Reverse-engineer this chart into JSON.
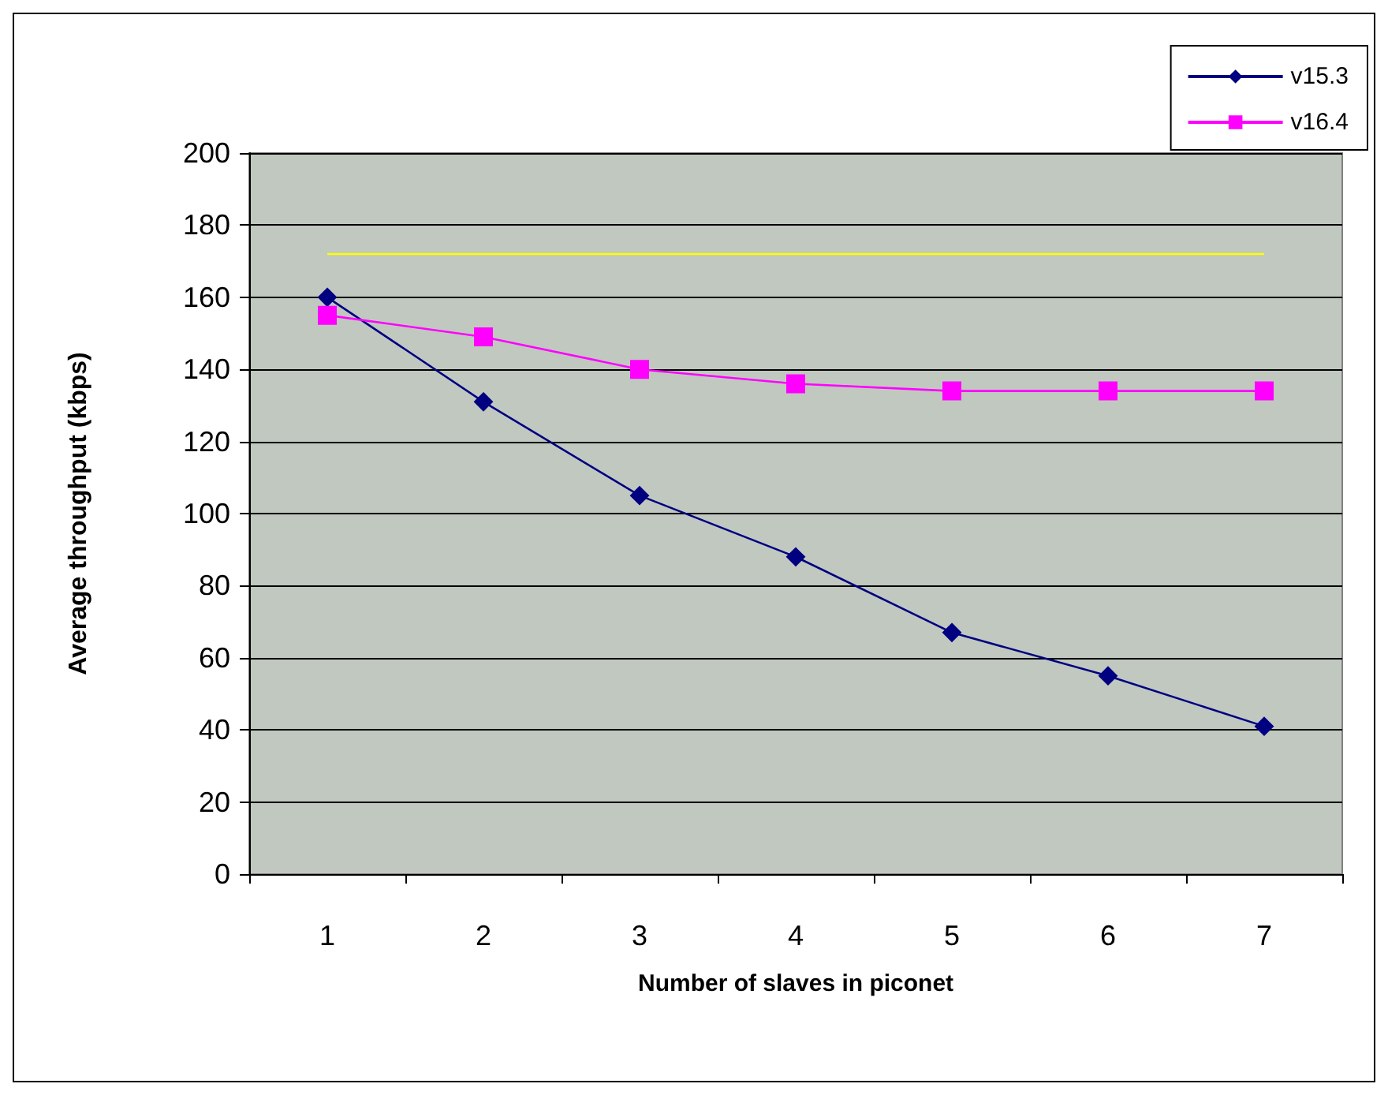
{
  "chart_data": {
    "type": "line",
    "xlabel": "Number of slaves in piconet",
    "ylabel": "Average throughput (kbps)",
    "categories": [
      "1",
      "2",
      "3",
      "4",
      "5",
      "6",
      "7"
    ],
    "series": [
      {
        "name": "v15.3",
        "color": "#000080",
        "marker": "diamond",
        "values": [
          160,
          131,
          105,
          88,
          67,
          55,
          41
        ]
      },
      {
        "name": "v16.4",
        "color": "#ff00ff",
        "marker": "square",
        "values": [
          155,
          149,
          140,
          136,
          134,
          134,
          134
        ]
      },
      {
        "color": "#ffff00",
        "marker": "none",
        "values": [
          172,
          172,
          172,
          172,
          172,
          172,
          172
        ]
      }
    ],
    "ylim": [
      0,
      200
    ],
    "yticks": [
      0,
      20,
      40,
      60,
      80,
      100,
      120,
      140,
      160,
      180,
      200
    ],
    "grid": "y",
    "legend": "top right"
  }
}
